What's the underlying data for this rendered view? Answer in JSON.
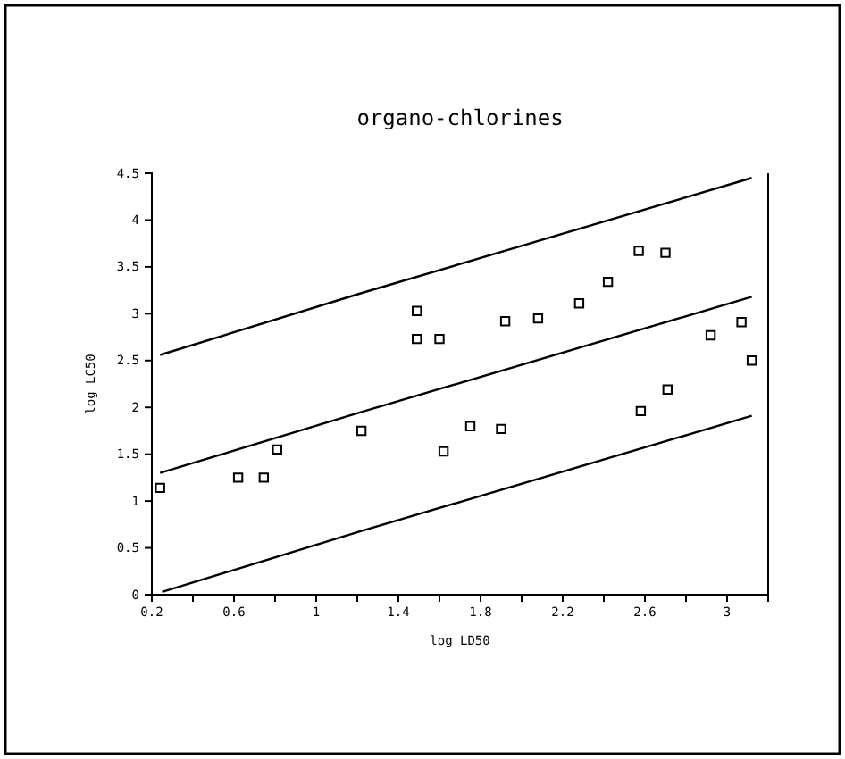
{
  "chart_data": {
    "type": "scatter",
    "title": "organo-chlorines",
    "xlabel": "log LD50",
    "ylabel": "log LC50",
    "xlim": [
      0.2,
      3.2
    ],
    "ylim": [
      0,
      4.5
    ],
    "xticks": [
      0.2,
      {
        "value": 0.4,
        "label": null
      },
      0.6,
      {
        "value": 0.8,
        "label": null
      },
      1,
      {
        "value": 1.2,
        "label": null
      },
      1.4,
      {
        "value": 1.6,
        "label": null
      },
      1.8,
      {
        "value": 2.0,
        "label": null
      },
      2.2,
      {
        "value": 2.4,
        "label": null
      },
      2.6,
      {
        "value": 2.8,
        "label": null
      },
      3,
      {
        "value": 3.2,
        "label": null
      }
    ],
    "yticks": [
      0,
      0.5,
      1,
      1.5,
      2,
      2.5,
      3,
      3.5,
      4,
      4.5
    ],
    "grid": false,
    "series": [
      {
        "color": "#000000",
        "marker": "square",
        "x": [
          0.24,
          0.62,
          0.745,
          0.81,
          1.22,
          1.49,
          1.49,
          1.6,
          1.62,
          1.75,
          1.9,
          1.92,
          2.08,
          2.28,
          2.42,
          2.57,
          2.7,
          2.58,
          2.71,
          2.92,
          3.07,
          3.12
        ],
        "values": [
          1.14,
          1.25,
          1.25,
          1.55,
          1.75,
          3.03,
          2.73,
          2.73,
          1.53,
          1.8,
          1.77,
          2.92,
          2.95,
          3.11,
          3.34,
          3.67,
          3.65,
          1.96,
          2.19,
          2.77,
          2.91,
          2.5
        ]
      },
      {
        "type": "line",
        "color": "#000000",
        "marker": "none",
        "line_style": "solid",
        "x": [
          0.24,
          1.22,
          3.12
        ],
        "values": [
          2.56,
          3.22,
          4.45
        ]
      },
      {
        "type": "line",
        "color": "#000000",
        "marker": "none",
        "line_style": "solid",
        "x": [
          0.24,
          1.22,
          3.12
        ],
        "values": [
          1.3,
          1.95,
          3.18
        ]
      },
      {
        "type": "line",
        "color": "#000000",
        "marker": "none",
        "line_style": "solid",
        "x": [
          0.25,
          1.22,
          3.12
        ],
        "values": [
          0.03,
          0.68,
          1.91
        ]
      }
    ]
  }
}
